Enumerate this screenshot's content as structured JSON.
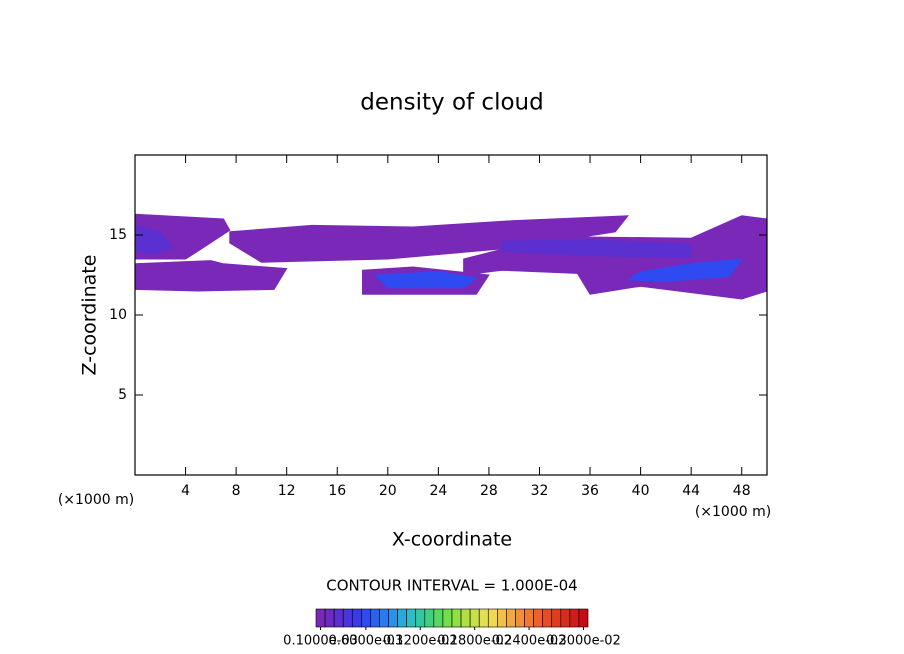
{
  "chart_data": {
    "type": "contour",
    "title": "density of cloud",
    "x_label": "X-coordinate",
    "y_label": "Z-coordinate",
    "x_unit_left": "(×1000 m)",
    "x_unit_right": "(×1000 m)",
    "contour_interval": "CONTOUR INTERVAL = 1.000E-04",
    "xlim": [
      0,
      50
    ],
    "ylim": [
      0,
      20
    ],
    "xticks": [
      4,
      8,
      12,
      16,
      20,
      24,
      28,
      32,
      36,
      40,
      44,
      48
    ],
    "yticks": [
      5,
      10,
      15
    ],
    "colorbar": {
      "levels": [
        0.0001,
        0.0002,
        0.0003,
        0.0004,
        0.0005,
        0.0006,
        0.0007,
        0.0008,
        0.0009,
        0.001,
        0.0011,
        0.0012,
        0.0013,
        0.0014,
        0.0015,
        0.0016,
        0.0017,
        0.0018,
        0.0019,
        0.002,
        0.0021,
        0.0022,
        0.0023,
        0.0024,
        0.0025,
        0.0026,
        0.0027,
        0.0028,
        0.0029,
        0.003
      ],
      "colors": [
        "#7a28b8",
        "#6a2cc4",
        "#5a30d0",
        "#4a34dc",
        "#3a3ae8",
        "#2f4af0",
        "#2a62f0",
        "#2a7af0",
        "#2a92e8",
        "#2aaad8",
        "#2ac0c0",
        "#30c8a0",
        "#40d080",
        "#58d860",
        "#70e048",
        "#90e040",
        "#b0e040",
        "#c8e048",
        "#e0e050",
        "#f0d850",
        "#f0c048",
        "#f0a840",
        "#f09038",
        "#f07830",
        "#f06028",
        "#e84c24",
        "#e03c20",
        "#d82c1c",
        "#d01c18",
        "#c80c14"
      ],
      "ticks": [
        {
          "value": 0.0001,
          "label": "0.1000e-03"
        },
        {
          "value": 0.0006,
          "label": "0.6000e-03"
        },
        {
          "value": 0.0012,
          "label": "0.1200e-02"
        },
        {
          "value": 0.0018,
          "label": "0.1800e-02"
        },
        {
          "value": 0.0024,
          "label": "0.2400e-02"
        },
        {
          "value": 0.003,
          "label": "0.3000e-02"
        }
      ]
    },
    "regions": [
      {
        "level": 0.0001,
        "x": [
          0,
          7,
          7.5,
          5,
          4,
          0
        ],
        "z": [
          16.3,
          16,
          15.3,
          14,
          13.5,
          13.5
        ]
      },
      {
        "level": 0.0001,
        "x": [
          0,
          6,
          7,
          12,
          11,
          5,
          0
        ],
        "z": [
          13.2,
          13.4,
          13.2,
          12.9,
          11.6,
          11.5,
          11.6
        ]
      },
      {
        "level": 0.0001,
        "x": [
          7.5,
          14,
          22,
          30,
          39,
          38,
          30,
          20,
          10,
          7.5
        ],
        "z": [
          15.2,
          15.6,
          15.5,
          15.9,
          16.2,
          15.2,
          14.2,
          13.5,
          13.3,
          14.5
        ]
      },
      {
        "level": 0.0001,
        "x": [
          18,
          22,
          28,
          27,
          18
        ],
        "z": [
          12.8,
          13,
          12.5,
          11.3,
          11.3
        ]
      },
      {
        "level": 0.0001,
        "x": [
          26,
          33,
          44,
          48,
          50,
          50,
          48,
          40,
          36,
          35,
          29,
          26
        ],
        "z": [
          13.5,
          14.9,
          14.8,
          16.2,
          16,
          11.5,
          11,
          11.8,
          11.3,
          12.6,
          12.8,
          12.5
        ]
      },
      {
        "level": 0.0003,
        "x": [
          29,
          36,
          44,
          44,
          36,
          29
        ],
        "z": [
          14.6,
          14.7,
          14.4,
          13.6,
          13.7,
          14
        ]
      },
      {
        "level": 0.0006,
        "x": [
          19,
          24,
          27,
          26,
          20
        ],
        "z": [
          12.5,
          12.7,
          12.3,
          11.7,
          11.7
        ]
      },
      {
        "level": 0.0006,
        "x": [
          40,
          44,
          48,
          47,
          42,
          39
        ],
        "z": [
          12.7,
          13.2,
          13.5,
          12.4,
          12.1,
          12.2
        ]
      },
      {
        "level": 0.0003,
        "x": [
          0,
          2,
          3,
          1.5,
          0
        ],
        "z": [
          15.6,
          15.2,
          14.2,
          13.8,
          14
        ]
      }
    ]
  }
}
